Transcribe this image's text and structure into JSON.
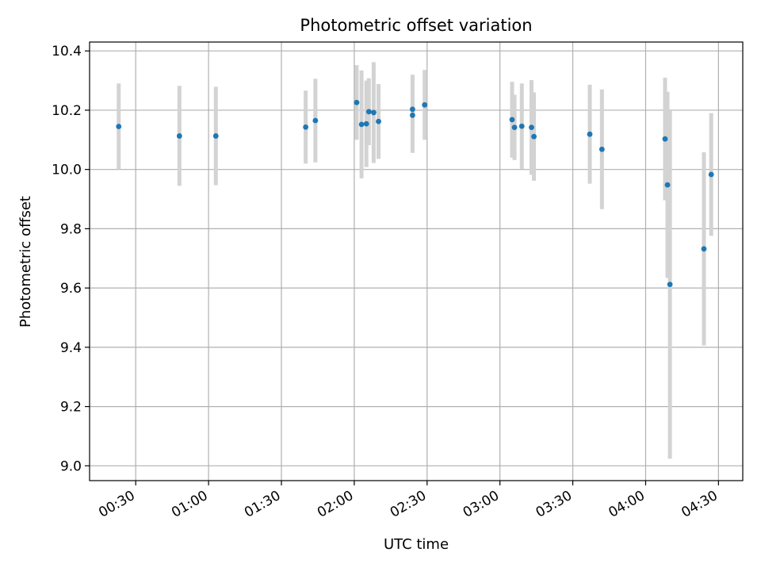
{
  "chart_data": {
    "type": "scatter",
    "title": "Photometric offset variation",
    "xlabel": "UTC time",
    "ylabel": "Photometric offset",
    "x_tick_labels": [
      "00:30",
      "01:00",
      "01:30",
      "02:00",
      "02:30",
      "03:00",
      "03:30",
      "04:00",
      "04:30"
    ],
    "y_tick_labels": [
      "9.0",
      "9.2",
      "9.4",
      "9.6",
      "9.8",
      "10.0",
      "10.2",
      "10.4"
    ],
    "xlim": [
      "00:11",
      "04:40"
    ],
    "ylim": [
      8.95,
      10.43
    ],
    "grid": true,
    "marker_color": "#1f77b4",
    "errorbar_color": "#d3d3d3",
    "points": [
      {
        "t": "00:23",
        "y": 10.145,
        "lo": 10.0,
        "hi": 10.29
      },
      {
        "t": "00:48",
        "y": 10.113,
        "lo": 9.945,
        "hi": 10.282
      },
      {
        "t": "01:03",
        "y": 10.113,
        "lo": 9.947,
        "hi": 10.279
      },
      {
        "t": "01:40",
        "y": 10.143,
        "lo": 10.02,
        "hi": 10.266
      },
      {
        "t": "01:44",
        "y": 10.165,
        "lo": 10.024,
        "hi": 10.306
      },
      {
        "t": "02:01",
        "y": 10.226,
        "lo": 10.1,
        "hi": 10.352
      },
      {
        "t": "02:03",
        "y": 10.152,
        "lo": 9.97,
        "hi": 10.334
      },
      {
        "t": "02:05",
        "y": 10.154,
        "lo": 10.008,
        "hi": 10.3
      },
      {
        "t": "02:06",
        "y": 10.195,
        "lo": 10.082,
        "hi": 10.308
      },
      {
        "t": "02:08",
        "y": 10.192,
        "lo": 10.022,
        "hi": 10.362
      },
      {
        "t": "02:10",
        "y": 10.162,
        "lo": 10.036,
        "hi": 10.288
      },
      {
        "t": "02:24",
        "y": 10.203,
        "lo": 10.086,
        "hi": 10.32
      },
      {
        "t": "02:24",
        "y": 10.183,
        "lo": 10.056,
        "hi": 10.31
      },
      {
        "t": "02:29",
        "y": 10.218,
        "lo": 10.1,
        "hi": 10.336
      },
      {
        "t": "03:05",
        "y": 10.168,
        "lo": 10.04,
        "hi": 10.296
      },
      {
        "t": "03:06",
        "y": 10.142,
        "lo": 10.032,
        "hi": 10.252
      },
      {
        "t": "03:09",
        "y": 10.146,
        "lo": 10.002,
        "hi": 10.29
      },
      {
        "t": "03:13",
        "y": 10.142,
        "lo": 9.982,
        "hi": 10.302
      },
      {
        "t": "03:14",
        "y": 10.111,
        "lo": 9.962,
        "hi": 10.26
      },
      {
        "t": "03:37",
        "y": 10.119,
        "lo": 9.952,
        "hi": 10.286
      },
      {
        "t": "03:42",
        "y": 10.068,
        "lo": 9.866,
        "hi": 10.27
      },
      {
        "t": "04:08",
        "y": 10.103,
        "lo": 9.896,
        "hi": 10.31
      },
      {
        "t": "04:09",
        "y": 9.948,
        "lo": 9.634,
        "hi": 10.262
      },
      {
        "t": "04:10",
        "y": 9.612,
        "lo": 9.024,
        "hi": 10.2
      },
      {
        "t": "04:24",
        "y": 9.732,
        "lo": 9.406,
        "hi": 10.058
      },
      {
        "t": "04:27",
        "y": 9.983,
        "lo": 9.776,
        "hi": 10.19
      }
    ]
  }
}
